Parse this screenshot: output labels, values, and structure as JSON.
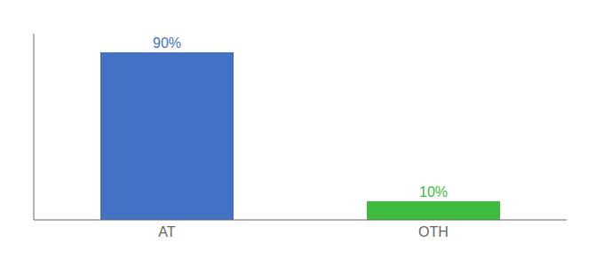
{
  "chart_data": {
    "type": "bar",
    "categories": [
      "AT",
      "OTH"
    ],
    "values": [
      90,
      10
    ],
    "value_labels": [
      "90%",
      "10%"
    ],
    "colors": [
      "#4472c4",
      "#3dbb3d"
    ],
    "ylim": [
      0,
      100
    ],
    "data_labels": true,
    "tick_labels": "x",
    "grid": false
  }
}
